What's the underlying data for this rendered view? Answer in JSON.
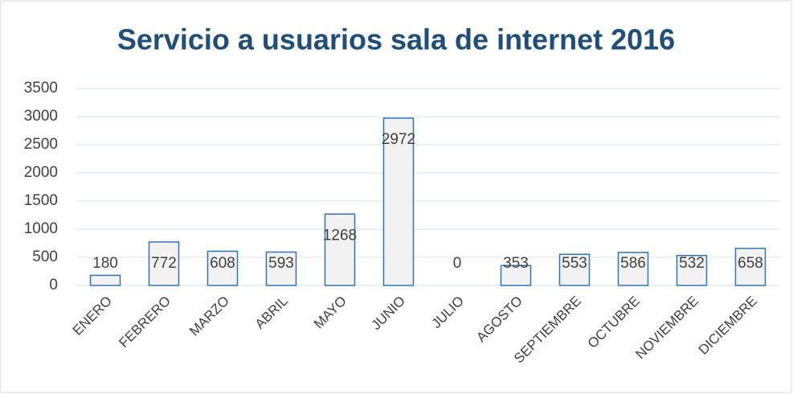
{
  "chart_data": {
    "type": "bar",
    "title": "Servicio a usuarios sala de internet 2016",
    "categories": [
      "ENERO",
      "FEBRERO",
      "MARZO",
      "ABRIL",
      "MAYO",
      "JUNIO",
      "JULIO",
      "AGOSTO",
      "SEPTIEMBRE",
      "OCTUBRE",
      "NOVIEMBRE",
      "DICIEMBRE"
    ],
    "values": [
      180,
      772,
      608,
      593,
      1268,
      2972,
      0,
      353,
      553,
      586,
      532,
      658
    ],
    "color": "#f2f2f2",
    "edge_color": "#2e75b6",
    "ylim": [
      0,
      3500
    ],
    "yticks": [
      0,
      500,
      1000,
      1500,
      2000,
      2500,
      3000,
      3500
    ],
    "grid": true
  }
}
